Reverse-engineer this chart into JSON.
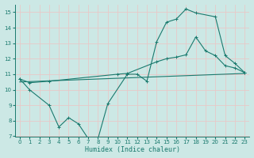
{
  "xlabel": "Humidex (Indice chaleur)",
  "bg_color": "#cce8e5",
  "grid_color": "#e8c8c8",
  "line_color": "#1a7a6e",
  "xlim": [
    -0.5,
    23.5
  ],
  "ylim": [
    7,
    15.5
  ],
  "xticks": [
    0,
    1,
    2,
    3,
    4,
    5,
    6,
    7,
    8,
    9,
    10,
    11,
    12,
    13,
    14,
    15,
    16,
    17,
    18,
    19,
    20,
    21,
    22,
    23
  ],
  "yticks": [
    7,
    8,
    9,
    10,
    11,
    12,
    13,
    14,
    15
  ],
  "series1_x": [
    0,
    1,
    3,
    4,
    5,
    6,
    7,
    8,
    9,
    11,
    12,
    13,
    14,
    15,
    16,
    17,
    18,
    20,
    21,
    22,
    23
  ],
  "series1_y": [
    10.7,
    10.0,
    9.0,
    7.6,
    8.2,
    7.8,
    6.85,
    6.85,
    9.1,
    11.0,
    11.0,
    10.55,
    13.1,
    14.35,
    14.55,
    15.2,
    14.95,
    14.7,
    12.2,
    11.7,
    11.1
  ],
  "series2_x": [
    0,
    1,
    3,
    10,
    11,
    14,
    15,
    16,
    17,
    18,
    19,
    20,
    21,
    22,
    23
  ],
  "series2_y": [
    10.7,
    10.45,
    10.55,
    11.0,
    11.05,
    11.8,
    12.0,
    12.1,
    12.25,
    13.4,
    12.5,
    12.2,
    11.55,
    11.4,
    11.1
  ],
  "series3_x": [
    0,
    23
  ],
  "series3_y": [
    10.5,
    11.05
  ],
  "xlabel_fontsize": 6,
  "tick_fontsize": 5,
  "lw": 0.8,
  "ms": 2.0
}
